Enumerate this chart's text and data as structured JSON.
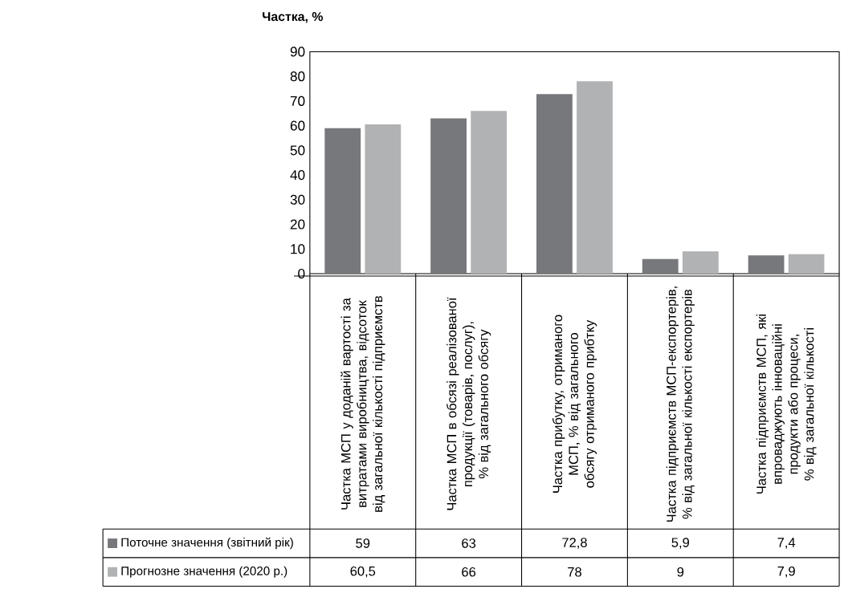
{
  "chart_data": {
    "type": "bar",
    "ylabel": "Частка, %",
    "categories": [
      "Частка МСП у доданій вартості за витратами виробництва, відсоток від загальної кількості підприємств",
      "Частка МСП в  обсязі реалізованої продукції (товарів, послуг), % від загального обсягу",
      "Частка прибутку, отриманого МСП, % від загального обсягу отриманого прибтку",
      "Частка підприємств МСП-експортерів, % від загальної кількості експортерів",
      "Частка підприємств МСП, які впроваджують інноваційні продукти або процеси, % від загальної кількості"
    ],
    "series": [
      {
        "name": "Поточне значення (звітний рік)",
        "color": "#77787b",
        "values": [
          59,
          63,
          72.8,
          5.9,
          7.4
        ],
        "value_labels": [
          "59",
          "63",
          "72,8",
          "5,9",
          "7,4"
        ]
      },
      {
        "name": "Прогнозне значення (2020 р.)",
        "color": "#b1b2b4",
        "values": [
          60.5,
          66,
          78,
          9,
          7.9
        ],
        "value_labels": [
          "60,5",
          "66",
          "78",
          "9",
          "7,9"
        ]
      }
    ],
    "ylim": [
      0,
      90
    ],
    "yticks": [
      0,
      10,
      20,
      30,
      40,
      50,
      60,
      70,
      80,
      90
    ],
    "legend": "bottom",
    "grid": false
  }
}
